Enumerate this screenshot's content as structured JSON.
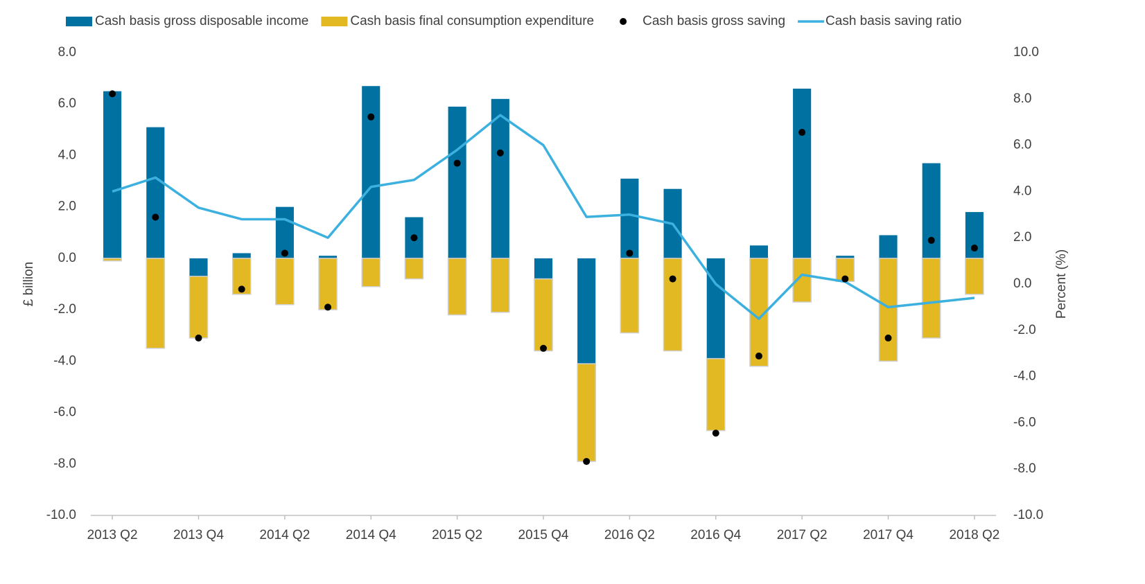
{
  "chart_data": {
    "type": "bar",
    "stacked": true,
    "y_label": "£ billion",
    "y2_label": "Percent (%)",
    "categories": [
      "2013 Q2",
      null,
      "2013 Q4",
      null,
      "2014 Q2",
      null,
      "2014 Q4",
      null,
      "2015 Q2",
      null,
      "2015 Q4",
      null,
      "2016 Q2",
      null,
      "2016 Q4",
      null,
      "2017 Q2",
      null,
      "2017 Q4",
      null,
      "2018 Q2"
    ],
    "ylim": [
      -10,
      8
    ],
    "yticks": [
      {
        "value": 8,
        "label": "8.0"
      },
      {
        "value": 6,
        "label": "6.0"
      },
      {
        "value": 4,
        "label": "4.0"
      },
      {
        "value": 2,
        "label": "2.0"
      },
      {
        "value": 0,
        "label": "0.0"
      },
      {
        "value": -2,
        "label": "-2.0"
      },
      {
        "value": -4,
        "label": "-4.0"
      },
      {
        "value": -6,
        "label": "-6.0"
      },
      {
        "value": -8,
        "label": "-8.0"
      },
      {
        "value": -10,
        "label": "-10.0"
      }
    ],
    "y2lim": [
      -10,
      10
    ],
    "y2ticks": [
      {
        "value": 10,
        "label": "10.0"
      },
      {
        "value": 8,
        "label": "8.0"
      },
      {
        "value": 6,
        "label": "6.0"
      },
      {
        "value": 4,
        "label": "4.0"
      },
      {
        "value": 2,
        "label": "2.0"
      },
      {
        "value": 0,
        "label": "0.0"
      },
      {
        "value": -2,
        "label": "-2.0"
      },
      {
        "value": -4,
        "label": "-4.0"
      },
      {
        "value": -6,
        "label": "-6.0"
      },
      {
        "value": -8,
        "label": "-8.0"
      },
      {
        "value": -10,
        "label": "-10.0"
      }
    ],
    "legend": "top",
    "series": [
      {
        "name": "Cash basis gross disposable income",
        "type": "bar",
        "color": "#0071a1",
        "values": [
          6.5,
          5.1,
          -0.7,
          0.2,
          2.0,
          0.1,
          6.7,
          1.6,
          5.9,
          6.2,
          -0.8,
          -4.1,
          3.1,
          2.7,
          -3.9,
          0.5,
          6.6,
          0.1,
          0.9,
          3.7,
          1.8
        ]
      },
      {
        "name": "Cash basis final consumption expenditure",
        "type": "bar",
        "color": "#e2b922",
        "values": [
          -0.1,
          -3.5,
          -2.4,
          -1.4,
          -1.8,
          -2.0,
          -1.1,
          -0.8,
          -2.2,
          -2.1,
          -2.8,
          -3.8,
          -2.9,
          -3.6,
          -2.8,
          -4.2,
          -1.7,
          -0.9,
          -4.0,
          -3.1,
          -1.4
        ]
      },
      {
        "name": "Cash basis gross saving",
        "type": "scatter",
        "color": "#000000",
        "values": [
          6.4,
          1.6,
          -3.1,
          -1.2,
          0.2,
          -1.9,
          5.5,
          0.8,
          3.7,
          4.1,
          -3.5,
          -7.9,
          0.2,
          -0.8,
          -6.8,
          -3.8,
          4.9,
          -0.8,
          -3.1,
          0.7,
          0.4
        ]
      },
      {
        "name": "Cash basis saving ratio",
        "type": "line",
        "color": "#3cb0de",
        "axis": "y2",
        "values": [
          4.0,
          4.6,
          3.3,
          2.8,
          2.8,
          2.0,
          4.2,
          4.5,
          5.8,
          7.3,
          6.0,
          2.9,
          3.0,
          2.6,
          0.0,
          -1.5,
          0.4,
          0.1,
          -1.0,
          -0.8,
          -0.6
        ]
      }
    ]
  }
}
